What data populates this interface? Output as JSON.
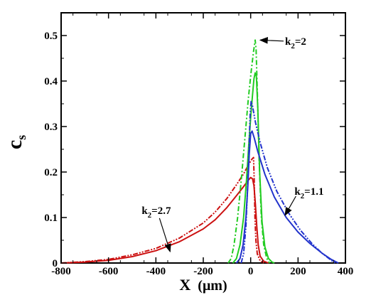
{
  "chart_data": {
    "type": "line",
    "title": "",
    "xlabel": {
      "main": "X",
      "unit": "(μm)"
    },
    "ylabel": {
      "main": "c",
      "sub": "s"
    },
    "xlim": [
      -800,
      400
    ],
    "ylim": [
      0,
      0.55
    ],
    "xticks": [
      -800,
      -600,
      -400,
      -200,
      0,
      200,
      400
    ],
    "yticks": [
      0,
      0.1,
      0.2,
      0.3,
      0.4,
      0.5
    ],
    "ytick_labels": [
      "0",
      "0.1",
      "0.2",
      "0.3",
      "0.4",
      "0.5"
    ],
    "grid": false,
    "legend": "none",
    "series": [
      {
        "color": "#cc1111",
        "style": "solid",
        "points": [
          [
            -800,
            0.0
          ],
          [
            -700,
            0.002
          ],
          [
            -600,
            0.006
          ],
          [
            -500,
            0.014
          ],
          [
            -400,
            0.027
          ],
          [
            -300,
            0.047
          ],
          [
            -200,
            0.075
          ],
          [
            -150,
            0.095
          ],
          [
            -100,
            0.122
          ],
          [
            -60,
            0.148
          ],
          [
            -30,
            0.168
          ],
          [
            -10,
            0.182
          ],
          [
            0,
            0.188
          ],
          [
            8,
            0.185
          ],
          [
            14,
            0.17
          ],
          [
            20,
            0.13
          ],
          [
            26,
            0.08
          ],
          [
            32,
            0.04
          ],
          [
            40,
            0.015
          ],
          [
            55,
            0.004
          ],
          [
            75,
            0.0
          ]
        ]
      },
      {
        "color": "#cc1111",
        "style": "dashdotdot",
        "points": [
          [
            -800,
            0.0
          ],
          [
            -700,
            0.003
          ],
          [
            -600,
            0.008
          ],
          [
            -500,
            0.018
          ],
          [
            -400,
            0.032
          ],
          [
            -300,
            0.055
          ],
          [
            -200,
            0.088
          ],
          [
            -150,
            0.112
          ],
          [
            -100,
            0.142
          ],
          [
            -60,
            0.172
          ],
          [
            -30,
            0.196
          ],
          [
            -10,
            0.215
          ],
          [
            5,
            0.228
          ],
          [
            12,
            0.232
          ],
          [
            15,
            0.18
          ],
          [
            18,
            0.1
          ],
          [
            22,
            0.05
          ],
          [
            28,
            0.02
          ],
          [
            40,
            0.005
          ],
          [
            55,
            0.0
          ]
        ]
      },
      {
        "color": "#22cc22",
        "style": "solid",
        "points": [
          [
            -75,
            0.0
          ],
          [
            -60,
            0.01
          ],
          [
            -45,
            0.04
          ],
          [
            -30,
            0.1
          ],
          [
            -18,
            0.18
          ],
          [
            -8,
            0.26
          ],
          [
            0,
            0.32
          ],
          [
            8,
            0.37
          ],
          [
            14,
            0.405
          ],
          [
            19,
            0.418
          ],
          [
            24,
            0.41
          ],
          [
            30,
            0.34
          ],
          [
            38,
            0.2
          ],
          [
            48,
            0.09
          ],
          [
            60,
            0.035
          ],
          [
            75,
            0.01
          ],
          [
            90,
            0.002
          ],
          [
            100,
            0.0
          ]
        ]
      },
      {
        "color": "#22cc22",
        "style": "dashdot",
        "points": [
          [
            -95,
            0.0
          ],
          [
            -82,
            0.01
          ],
          [
            -70,
            0.04
          ],
          [
            -55,
            0.1
          ],
          [
            -40,
            0.18
          ],
          [
            -25,
            0.27
          ],
          [
            -10,
            0.36
          ],
          [
            2,
            0.42
          ],
          [
            12,
            0.465
          ],
          [
            19,
            0.49
          ],
          [
            23,
            0.47
          ],
          [
            28,
            0.38
          ],
          [
            36,
            0.22
          ],
          [
            45,
            0.1
          ],
          [
            55,
            0.04
          ],
          [
            68,
            0.01
          ],
          [
            80,
            0.0
          ]
        ]
      },
      {
        "color": "#2233cc",
        "style": "solid",
        "points": [
          [
            -60,
            0.0
          ],
          [
            -45,
            0.01
          ],
          [
            -32,
            0.04
          ],
          [
            -20,
            0.1
          ],
          [
            -12,
            0.17
          ],
          [
            -6,
            0.24
          ],
          [
            0,
            0.285
          ],
          [
            6,
            0.29
          ],
          [
            15,
            0.275
          ],
          [
            30,
            0.245
          ],
          [
            60,
            0.195
          ],
          [
            100,
            0.145
          ],
          [
            150,
            0.1
          ],
          [
            200,
            0.068
          ],
          [
            250,
            0.043
          ],
          [
            300,
            0.022
          ],
          [
            340,
            0.008
          ],
          [
            370,
            0.0
          ]
        ]
      },
      {
        "color": "#2233cc",
        "style": "dashdotdot",
        "points": [
          [
            -40,
            0.0
          ],
          [
            -30,
            0.02
          ],
          [
            -20,
            0.08
          ],
          [
            -12,
            0.18
          ],
          [
            -6,
            0.27
          ],
          [
            -2,
            0.33
          ],
          [
            2,
            0.355
          ],
          [
            8,
            0.345
          ],
          [
            20,
            0.31
          ],
          [
            40,
            0.265
          ],
          [
            70,
            0.21
          ],
          [
            110,
            0.158
          ],
          [
            160,
            0.11
          ],
          [
            210,
            0.072
          ],
          [
            260,
            0.042
          ],
          [
            300,
            0.022
          ],
          [
            330,
            0.01
          ],
          [
            355,
            0.0
          ]
        ]
      }
    ],
    "annotations": [
      {
        "label": "k",
        "sub": "2",
        "value": "=2",
        "text_at": [
          145,
          0.48
        ],
        "arrow_to": [
          40,
          0.49
        ]
      },
      {
        "label": "k",
        "sub": "2",
        "value": "=1.1",
        "text_at": [
          185,
          0.15
        ],
        "arrow_to": [
          145,
          0.105
        ]
      },
      {
        "label": "k",
        "sub": "2",
        "value": "=2.7",
        "text_at": [
          -460,
          0.108
        ],
        "arrow_to": [
          -340,
          0.025
        ]
      }
    ]
  }
}
